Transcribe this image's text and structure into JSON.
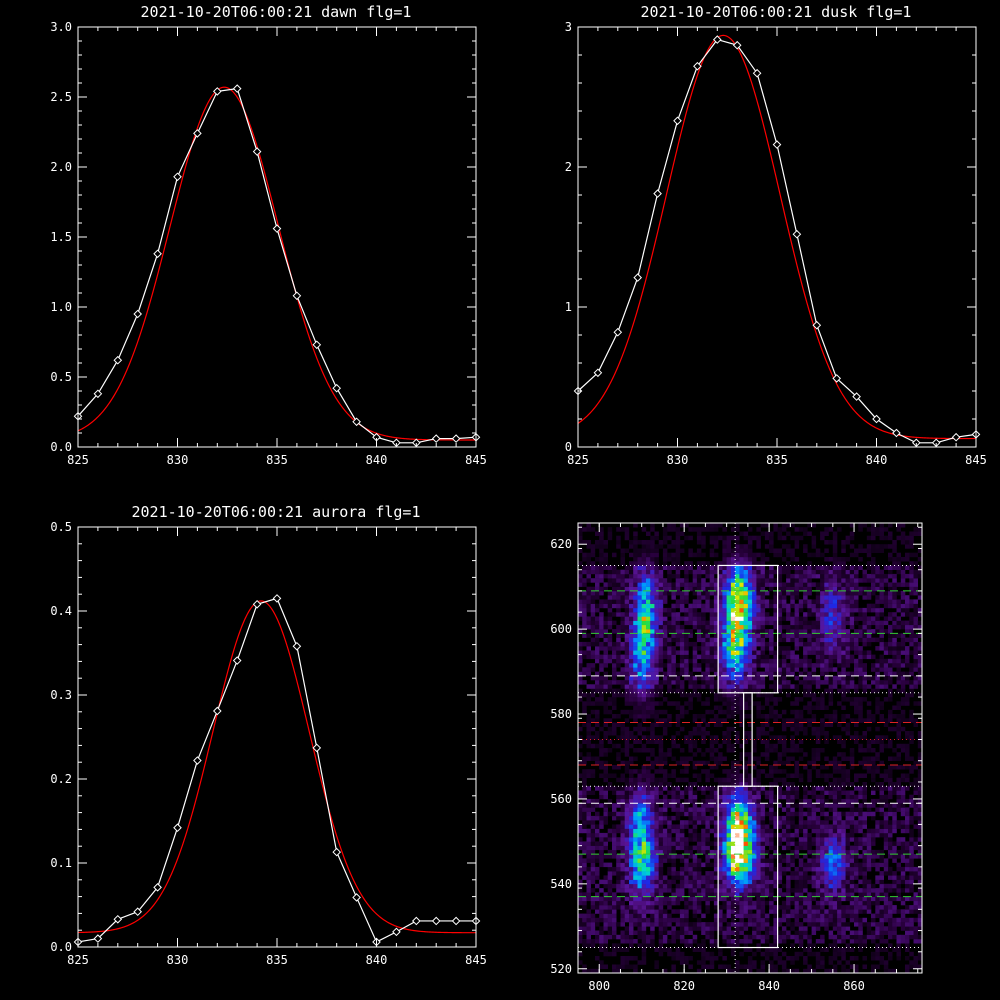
{
  "colors": {
    "background": "#000000",
    "axis": "#ffffff",
    "data_line": "#ffffff",
    "fit_line": "#ff0000",
    "green_dashed": "#33cc33",
    "red_dashed": "#dd2222",
    "white_dashed": "#ffffff"
  },
  "chart_data": [
    {
      "type": "line",
      "title": "2021-10-20T06:00:21 dawn flg=1",
      "xlim": [
        825,
        845
      ],
      "ylim": [
        0,
        3.0
      ],
      "xticks": [
        825,
        830,
        835,
        840,
        845
      ],
      "xtick_labels": [
        "825",
        "830",
        "835",
        "840",
        "845"
      ],
      "yticks": [
        0,
        0.5,
        1.0,
        1.5,
        2.0,
        2.5,
        3.0
      ],
      "ytick_labels": [
        "0.0",
        "0.5",
        "1.0",
        "1.5",
        "2.0",
        "2.5",
        "3.0"
      ],
      "xminor": 1,
      "yminor": 0.1,
      "series": [
        {
          "role": "data",
          "marker": "diamond",
          "x": [
            825,
            826,
            827,
            828,
            829,
            830,
            831,
            832,
            833,
            834,
            835,
            836,
            837,
            838,
            839,
            840,
            841,
            842,
            843,
            844,
            845
          ],
          "y": [
            0.22,
            0.38,
            0.62,
            0.95,
            1.38,
            1.93,
            2.24,
            2.54,
            2.56,
            2.11,
            1.56,
            1.08,
            0.73,
            0.42,
            0.18,
            0.07,
            0.03,
            0.03,
            0.06,
            0.06,
            0.07
          ]
        },
        {
          "role": "fit",
          "model": "gaussian",
          "amp": 2.52,
          "center": 832.35,
          "sigma": 2.72,
          "offset": 0.05
        }
      ]
    },
    {
      "type": "line",
      "title": "2021-10-20T06:00:21 dusk flg=1",
      "xlim": [
        825,
        845
      ],
      "ylim": [
        0,
        3
      ],
      "xticks": [
        825,
        830,
        835,
        840,
        845
      ],
      "xtick_labels": [
        "825",
        "830",
        "835",
        "840",
        "845"
      ],
      "yticks": [
        0,
        1,
        2,
        3
      ],
      "ytick_labels": [
        "0",
        "1",
        "2",
        "3"
      ],
      "xminor": 1,
      "yminor": 0.2,
      "series": [
        {
          "role": "data",
          "marker": "diamond",
          "x": [
            825,
            826,
            827,
            828,
            829,
            830,
            831,
            832,
            833,
            834,
            835,
            836,
            837,
            838,
            839,
            840,
            841,
            842,
            843,
            844,
            845
          ],
          "y": [
            0.4,
            0.53,
            0.82,
            1.21,
            1.81,
            2.33,
            2.72,
            2.91,
            2.87,
            2.67,
            2.16,
            1.52,
            0.87,
            0.49,
            0.36,
            0.2,
            0.1,
            0.03,
            0.03,
            0.07,
            0.09
          ]
        },
        {
          "role": "fit",
          "model": "gaussian",
          "amp": 2.88,
          "center": 832.3,
          "sigma": 2.85,
          "offset": 0.06
        }
      ]
    },
    {
      "type": "line",
      "title": "2021-10-20T06:00:21 aurora flg=1",
      "xlim": [
        825,
        845
      ],
      "ylim": [
        0,
        0.5
      ],
      "xticks": [
        825,
        830,
        835,
        840,
        845
      ],
      "xtick_labels": [
        "825",
        "830",
        "835",
        "840",
        "845"
      ],
      "yticks": [
        0,
        0.1,
        0.2,
        0.3,
        0.4,
        0.5
      ],
      "ytick_labels": [
        "0.0",
        "0.1",
        "0.2",
        "0.3",
        "0.4",
        "0.5"
      ],
      "xminor": 1,
      "yminor": 0.02,
      "series": [
        {
          "role": "data",
          "marker": "diamond",
          "x": [
            825,
            826,
            827,
            828,
            829,
            830,
            831,
            832,
            833,
            834,
            835,
            836,
            837,
            838,
            839,
            840,
            841,
            842,
            843,
            844,
            845
          ],
          "y": [
            0.006,
            0.01,
            0.033,
            0.042,
            0.071,
            0.142,
            0.222,
            0.281,
            0.341,
            0.408,
            0.415,
            0.358,
            0.237,
            0.113,
            0.059,
            0.006,
            0.018,
            0.031,
            0.031,
            0.031,
            0.031
          ]
        },
        {
          "role": "fit",
          "model": "gaussian",
          "amp": 0.395,
          "center": 834.2,
          "sigma": 2.42,
          "offset": 0.017
        }
      ]
    },
    {
      "type": "heatmap",
      "title": "",
      "xlim": [
        795,
        876
      ],
      "ylim": [
        519,
        625
      ],
      "xticks": [
        800,
        820,
        840,
        860
      ],
      "xtick_labels": [
        "800",
        "820",
        "840",
        "860"
      ],
      "yticks": [
        520,
        540,
        560,
        580,
        600,
        620
      ],
      "ytick_labels": [
        "520",
        "540",
        "560",
        "580",
        "600",
        "620"
      ],
      "xminor": 5,
      "yminor": 5,
      "colormap": "rainbow-on-black",
      "emission_blobs": [
        {
          "x": 811,
          "y": 604,
          "sx": 2.0,
          "sy": 6.5,
          "amp": 0.55
        },
        {
          "x": 810,
          "y": 592,
          "sx": 2.0,
          "sy": 6.0,
          "amp": 0.35
        },
        {
          "x": 833,
          "y": 607,
          "sx": 2.3,
          "sy": 5.5,
          "amp": 0.78
        },
        {
          "x": 832,
          "y": 596,
          "sx": 2.3,
          "sy": 6.0,
          "amp": 0.55
        },
        {
          "x": 855,
          "y": 603,
          "sx": 2.0,
          "sy": 6.0,
          "amp": 0.28
        },
        {
          "x": 810,
          "y": 546,
          "sx": 2.1,
          "sy": 6.0,
          "amp": 0.62
        },
        {
          "x": 810,
          "y": 557,
          "sx": 2.0,
          "sy": 4.5,
          "amp": 0.3
        },
        {
          "x": 833,
          "y": 547,
          "sx": 2.4,
          "sy": 5.0,
          "amp": 0.95
        },
        {
          "x": 833,
          "y": 556,
          "sx": 2.2,
          "sy": 4.5,
          "amp": 0.55
        },
        {
          "x": 855,
          "y": 545,
          "sx": 2.0,
          "sy": 4.5,
          "amp": 0.4
        }
      ],
      "boxes": [
        {
          "x0": 828,
          "x1": 842,
          "y0": 585,
          "y1": 615
        },
        {
          "x0": 828,
          "x1": 842,
          "y0": 525,
          "y1": 563
        },
        {
          "x0": 834,
          "x1": 836,
          "y0": 563,
          "y1": 585
        }
      ],
      "center_column_x": 832,
      "hlines": [
        {
          "y": 615,
          "style": "dotted",
          "color": "white"
        },
        {
          "y": 609,
          "style": "dashed",
          "color": "green"
        },
        {
          "y": 599,
          "style": "dashed",
          "color": "green"
        },
        {
          "y": 589,
          "style": "dashed",
          "color": "white"
        },
        {
          "y": 585,
          "style": "dotted",
          "color": "white"
        },
        {
          "y": 578,
          "style": "dashed",
          "color": "red"
        },
        {
          "y": 574,
          "style": "dotted",
          "color": "red"
        },
        {
          "y": 568,
          "style": "dashed",
          "color": "red"
        },
        {
          "y": 563,
          "style": "dotted",
          "color": "white"
        },
        {
          "y": 559,
          "style": "dashed",
          "color": "white"
        },
        {
          "y": 547,
          "style": "dashed",
          "color": "green"
        },
        {
          "y": 537,
          "style": "dashed",
          "color": "green"
        },
        {
          "y": 525,
          "style": "dotted",
          "color": "white"
        }
      ]
    }
  ]
}
